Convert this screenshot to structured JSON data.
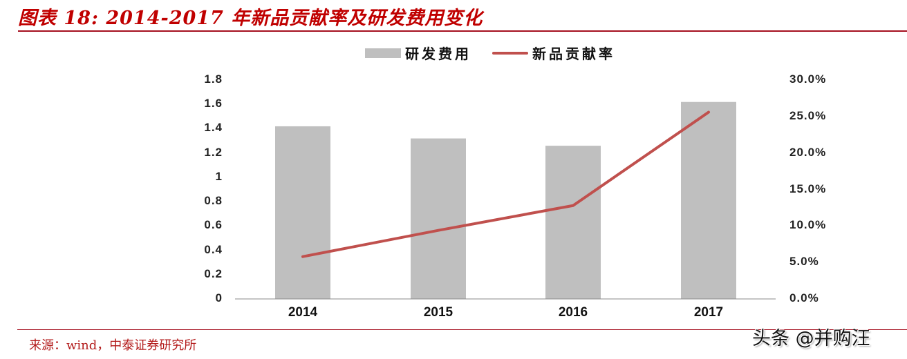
{
  "title": "图表 18: 2014-2017 年新品贡献率及研发费用变化",
  "legend": [
    {
      "label": "研发费用",
      "type": "bar",
      "color": "#bfbfbf"
    },
    {
      "label": "新品贡献率",
      "type": "line",
      "color": "#c0504d"
    }
  ],
  "source": "来源：wind，中泰证券研究所",
  "watermark": "头条 @并购汪",
  "colors": {
    "accent": "#c00000",
    "bar": "#bfbfbf",
    "line": "#c0504d",
    "rule": "#a50f1e"
  },
  "chart_data": {
    "type": "bar",
    "title": "2014-2017 年新品贡献率及研发费用变化",
    "categories": [
      "2014",
      "2015",
      "2016",
      "2017"
    ],
    "series": [
      {
        "name": "研发费用",
        "type": "bar",
        "axis": "left",
        "values": [
          1.42,
          1.32,
          1.26,
          1.62
        ]
      },
      {
        "name": "新品贡献率",
        "type": "line",
        "axis": "right",
        "values": [
          5.8,
          9.4,
          12.8,
          25.6
        ],
        "unit": "%"
      }
    ],
    "left_axis": {
      "ticks": [
        "1.8",
        "1.6",
        "1.4",
        "1.2",
        "1",
        "0.8",
        "0.6",
        "0.4",
        "0.2",
        "0"
      ],
      "ylim": [
        0,
        1.8
      ]
    },
    "right_axis": {
      "ticks": [
        "30.0%",
        "25.0%",
        "20.0%",
        "15.0%",
        "10.0%",
        "5.0%",
        "0.0%"
      ],
      "ylim": [
        0,
        30
      ]
    },
    "grid": false,
    "legend_position": "top",
    "xlabel": "",
    "ylabel": ""
  }
}
